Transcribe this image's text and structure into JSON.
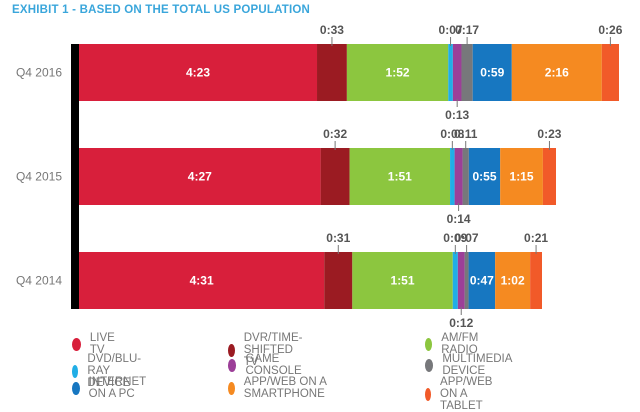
{
  "title": "EXHIBIT 1 - BASED ON THE TOTAL US POPULATION",
  "chart_data": {
    "type": "bar",
    "orientation": "horizontal",
    "stacked": true,
    "title": "EXHIBIT 1 - BASED ON THE TOTAL US POPULATION",
    "xlabel": "",
    "ylabel": "",
    "units": "hours:minutes per day",
    "categories": [
      "Q4 2016",
      "Q4 2015",
      "Q4 2014"
    ],
    "series": [
      {
        "name": "LIVE TV",
        "color": "#d81f3b",
        "values": [
          "4:23",
          "4:27",
          "4:31"
        ],
        "minutes": [
          263,
          267,
          271
        ],
        "label_position": "inside"
      },
      {
        "name": "DVR/TIME-SHIFTED TV",
        "color": "#9b1b22",
        "values": [
          "0:33",
          "0:32",
          "0:31"
        ],
        "minutes": [
          33,
          32,
          31
        ],
        "label_position": "above"
      },
      {
        "name": "AM/FM RADIO",
        "color": "#8cc63f",
        "values": [
          "1:52",
          "1:51",
          "1:51"
        ],
        "minutes": [
          112,
          111,
          111
        ],
        "label_position": "inside"
      },
      {
        "name": "DVD/BLU-RAY DEVICE",
        "color": "#21aee6",
        "values": [
          "0:07",
          "0:08",
          "0:09"
        ],
        "minutes": [
          7,
          8,
          9
        ],
        "label_position": "above"
      },
      {
        "name": "GAME CONSOLE",
        "color": "#9c3f98",
        "values": [
          "0:13",
          "0:14",
          "0:12"
        ],
        "minutes": [
          13,
          14,
          12
        ],
        "label_position": "below"
      },
      {
        "name": "MULTIMEDIA DEVICE",
        "color": "#77787b",
        "values": [
          "0:17",
          "0:11",
          "0:07"
        ],
        "minutes": [
          17,
          11,
          7
        ],
        "label_position": "above"
      },
      {
        "name": "INTERNET ON A PC",
        "color": "#1777c1",
        "values": [
          "0:59",
          "0:55",
          "0:47"
        ],
        "minutes": [
          59,
          55,
          47
        ],
        "label_position": "inside"
      },
      {
        "name": "APP/WEB ON A SMARTPHONE",
        "color": "#f58a21",
        "values": [
          "2:16",
          "1:15",
          "1:02"
        ],
        "minutes": [
          136,
          75,
          62
        ],
        "label_position": "inside"
      },
      {
        "name": "APP/WEB ON A TABLET",
        "color": "#f15a29",
        "values": [
          "0:26",
          "0:23",
          "0:21"
        ],
        "minutes": [
          26,
          23,
          21
        ],
        "label_position": "above"
      }
    ],
    "legend": {
      "position": "bottom",
      "columns": 3
    },
    "grid": false
  }
}
